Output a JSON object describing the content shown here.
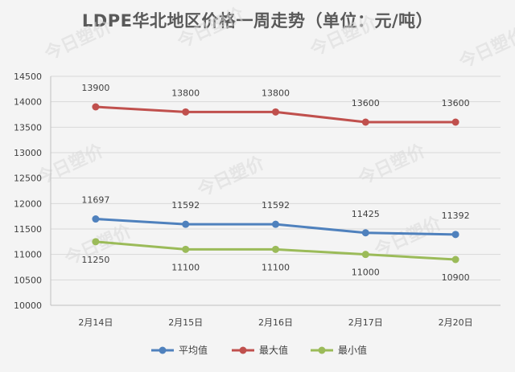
{
  "chart_data": {
    "type": "line",
    "title": "LDPE华北地区价格一周走势（单位：元/吨）",
    "categories": [
      "2月14日",
      "2月15日",
      "2月16日",
      "2月17日",
      "2月20日"
    ],
    "ylim": [
      10000,
      14500
    ],
    "yticks": [
      10000,
      10500,
      11000,
      11500,
      12000,
      12500,
      13000,
      13500,
      14000,
      14500
    ],
    "grid": true,
    "legend_position": "bottom",
    "series": [
      {
        "name": "平均值",
        "color": "#4f81bd",
        "values": [
          11697,
          11592,
          11592,
          11425,
          11392
        ]
      },
      {
        "name": "最大值",
        "color": "#c0504d",
        "values": [
          13900,
          13800,
          13800,
          13600,
          13600
        ]
      },
      {
        "name": "最小值",
        "color": "#9bbb59",
        "values": [
          11250,
          11100,
          11100,
          11000,
          10900
        ]
      }
    ]
  },
  "watermark_text": "今日塑价"
}
